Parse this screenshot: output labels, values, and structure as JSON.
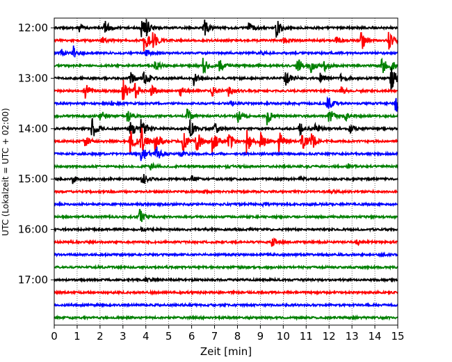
{
  "chart_data": {
    "type": "line",
    "subtype": "helicorder",
    "title": "",
    "xlabel": "Zeit  [min]",
    "ylabel": "UTC (Lokalzeit = UTC + 02:00)",
    "xlim": [
      0,
      15
    ],
    "x_ticks": [
      0,
      1,
      2,
      3,
      4,
      5,
      6,
      7,
      8,
      9,
      10,
      11,
      12,
      13,
      14,
      15
    ],
    "x_tick_labels": [
      "0",
      "1",
      "2",
      "3",
      "4",
      "5",
      "6",
      "7",
      "8",
      "9",
      "10",
      "11",
      "12",
      "13",
      "14",
      "15"
    ],
    "y_tick_labels": [
      "12:00",
      "13:00",
      "14:00",
      "15:00",
      "16:00",
      "17:00"
    ],
    "y_tick_rows": [
      0,
      4,
      8,
      12,
      16,
      20
    ],
    "grid": "vertical dotted lines at each minute",
    "colors": [
      "#000000",
      "#ff0000",
      "#0000ff",
      "#008000"
    ],
    "row_minutes": 15,
    "rows": [
      {
        "start": "12:00",
        "events": [
          [
            2.2,
            0.55
          ],
          [
            3.8,
            0.8
          ],
          [
            6.5,
            0.9
          ],
          [
            9.7,
            0.8
          ],
          [
            4.0,
            0.5
          ],
          [
            1.1,
            0.3
          ],
          [
            8.5,
            0.35
          ]
        ]
      },
      {
        "start": "12:15",
        "events": [
          [
            3.9,
            1.0
          ],
          [
            2.1,
            0.3
          ],
          [
            4.3,
            0.6
          ],
          [
            13.4,
            0.85
          ],
          [
            14.6,
            0.7
          ],
          [
            10.0,
            0.3
          ],
          [
            12.3,
            0.25
          ]
        ]
      },
      {
        "start": "12:30",
        "events": [
          [
            0.8,
            0.6
          ],
          [
            0.3,
            0.3
          ],
          [
            4.0,
            0.2
          ],
          [
            9.0,
            0.15
          ]
        ]
      },
      {
        "start": "12:45",
        "events": [
          [
            4.4,
            0.4
          ],
          [
            6.5,
            0.7
          ],
          [
            7.2,
            0.5
          ],
          [
            10.6,
            0.7
          ],
          [
            11.2,
            0.5
          ],
          [
            11.8,
            0.4
          ],
          [
            14.3,
            0.65
          ],
          [
            14.7,
            0.4
          ]
        ]
      },
      {
        "start": "13:00",
        "events": [
          [
            3.9,
            1.0
          ],
          [
            3.3,
            0.5
          ],
          [
            6.1,
            0.6
          ],
          [
            10.1,
            0.9
          ],
          [
            14.7,
            1.0
          ],
          [
            11.6,
            0.4
          ],
          [
            12.5,
            0.4
          ]
        ]
      },
      {
        "start": "13:15",
        "events": [
          [
            1.3,
            0.8
          ],
          [
            3.0,
            0.9
          ],
          [
            3.5,
            0.7
          ],
          [
            4.2,
            0.5
          ],
          [
            5.5,
            0.4
          ],
          [
            6.9,
            0.45
          ],
          [
            7.6,
            0.4
          ],
          [
            12.5,
            0.3
          ]
        ]
      },
      {
        "start": "13:30",
        "events": [
          [
            11.9,
            0.7
          ],
          [
            14.9,
            1.0
          ],
          [
            7.7,
            0.2
          ],
          [
            2.5,
            0.15
          ]
        ]
      },
      {
        "start": "13:45",
        "events": [
          [
            2.0,
            0.6
          ],
          [
            3.2,
            0.5
          ],
          [
            5.8,
            0.5
          ],
          [
            8.0,
            0.5
          ],
          [
            9.3,
            0.7
          ],
          [
            12.0,
            0.6
          ],
          [
            12.7,
            0.4
          ]
        ]
      },
      {
        "start": "14:00",
        "events": [
          [
            1.65,
            0.8
          ],
          [
            3.3,
            1.0
          ],
          [
            3.8,
            0.9
          ],
          [
            5.9,
            0.8
          ],
          [
            7.0,
            0.5
          ],
          [
            10.7,
            0.5
          ],
          [
            11.4,
            0.3
          ],
          [
            12.9,
            0.3
          ]
        ]
      },
      {
        "start": "14:15",
        "events": [
          [
            1.3,
            0.6
          ],
          [
            3.3,
            1.0
          ],
          [
            3.8,
            1.0
          ],
          [
            4.4,
            1.0
          ],
          [
            5.6,
            0.9
          ],
          [
            6.2,
            0.9
          ],
          [
            6.9,
            1.0
          ],
          [
            7.6,
            0.8
          ],
          [
            8.4,
            0.9
          ],
          [
            9.0,
            0.9
          ],
          [
            9.8,
            0.8
          ],
          [
            10.8,
            0.9
          ],
          [
            11.2,
            0.8
          ]
        ]
      },
      {
        "start": "14:30",
        "events": [
          [
            3.8,
            0.8
          ],
          [
            4.45,
            0.6
          ],
          [
            5.5,
            0.2
          ]
        ]
      },
      {
        "start": "14:45",
        "events": [
          [
            4.2,
            0.25
          ],
          [
            7.5,
            0.15
          ],
          [
            12.8,
            0.2
          ]
        ]
      },
      {
        "start": "15:00",
        "events": [
          [
            0.8,
            0.3
          ],
          [
            3.8,
            0.6
          ],
          [
            6.0,
            0.2
          ],
          [
            10.7,
            0.15
          ]
        ]
      },
      {
        "start": "15:15",
        "events": [
          [
            12.0,
            0.15
          ],
          [
            6.5,
            0.1
          ]
        ]
      },
      {
        "start": "15:30",
        "events": [
          [
            9.1,
            0.15
          ]
        ]
      },
      {
        "start": "15:45",
        "events": [
          [
            3.7,
            0.8
          ]
        ]
      },
      {
        "start": "16:00",
        "events": [
          [
            3.8,
            0.15
          ]
        ]
      },
      {
        "start": "16:15",
        "events": [
          [
            9.5,
            0.3
          ],
          [
            13.2,
            0.15
          ]
        ]
      },
      {
        "start": "16:30",
        "events": [
          [
            14.2,
            0.1
          ]
        ]
      },
      {
        "start": "16:45",
        "events": []
      },
      {
        "start": "17:00",
        "events": [
          [
            4.0,
            0.15
          ]
        ]
      },
      {
        "start": "17:15",
        "events": []
      },
      {
        "start": "17:30",
        "events": []
      },
      {
        "start": "17:45",
        "events": []
      }
    ]
  }
}
